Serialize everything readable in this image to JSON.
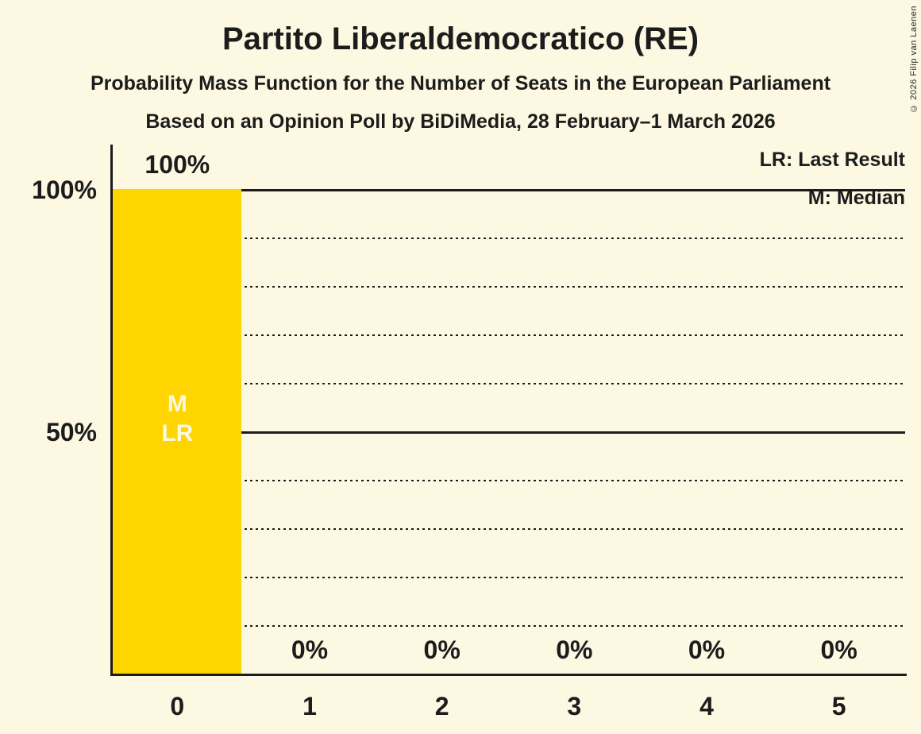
{
  "header": {
    "title": "Partito Liberaldemocratico (RE)",
    "subtitle": "Probability Mass Function for the Number of Seats in the European Parliament",
    "poll_line": "Based on an Opinion Poll by BiDiMedia, 28 February–1 March 2026"
  },
  "copyright": "© 2026 Filip van Laenen",
  "legend": {
    "last_result": "LR: Last Result",
    "median": "M: Median"
  },
  "colors": {
    "background": "#FCF8E1",
    "bar": "#FFD500",
    "text": "#1C1C1C",
    "bar_inner_label": "#FCF8E1"
  },
  "chart_data": {
    "type": "bar",
    "title": "Partito Liberaldemocratico (RE)",
    "categories": [
      "0",
      "1",
      "2",
      "3",
      "4",
      "5"
    ],
    "values": [
      100,
      0,
      0,
      0,
      0,
      0
    ],
    "value_labels": [
      "100%",
      "0%",
      "0%",
      "0%",
      "0%",
      "0%"
    ],
    "annotations": [
      {
        "category_index": 0,
        "lines": [
          "M",
          "LR"
        ],
        "meanings": [
          "Median",
          "Last Result"
        ]
      }
    ],
    "xlabel": "",
    "ylabel": "",
    "ylim": [
      0,
      100
    ],
    "y_ticks": [
      {
        "value": 100,
        "label": "100%"
      },
      {
        "value": 50,
        "label": "50%"
      }
    ],
    "gridlines": {
      "solid": [
        50,
        100
      ],
      "dotted": [
        10,
        20,
        30,
        40,
        60,
        70,
        80,
        90
      ]
    },
    "grid": true,
    "legend_position": "top-right"
  }
}
